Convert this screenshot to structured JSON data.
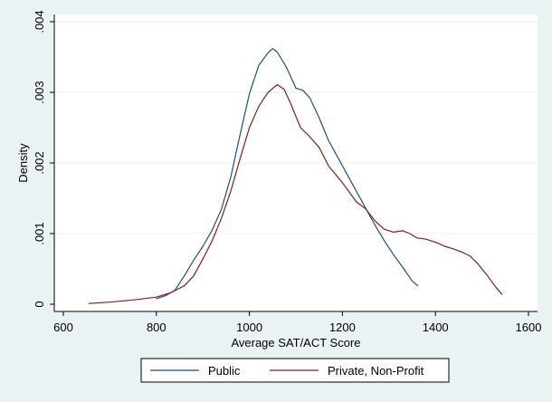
{
  "chart_data": {
    "type": "line",
    "title": "",
    "xlabel": "Average SAT/ACT Score",
    "ylabel": "Density",
    "xlim": [
      600,
      1600
    ],
    "ylim": [
      0,
      0.004
    ],
    "x_ticks": [
      600,
      800,
      1000,
      1200,
      1400,
      1600
    ],
    "y_ticks": [
      0,
      0.001,
      0.002,
      0.003,
      0.004
    ],
    "x_tick_labels": [
      "600",
      "800",
      "1000",
      "1200",
      "1400",
      "1600"
    ],
    "y_tick_labels": [
      "0",
      ".001",
      ".002",
      ".003",
      ".004"
    ],
    "grid": "horizontal",
    "legend_position": "bottom",
    "series": [
      {
        "name": "Public",
        "color": "#1a4f8b",
        "points": [
          [
            800,
            8e-05
          ],
          [
            820,
            0.00012
          ],
          [
            840,
            0.0002
          ],
          [
            860,
            0.0004
          ],
          [
            880,
            0.00062
          ],
          [
            900,
            0.00082
          ],
          [
            920,
            0.00105
          ],
          [
            940,
            0.00135
          ],
          [
            960,
            0.0018
          ],
          [
            980,
            0.0024
          ],
          [
            1000,
            0.00298
          ],
          [
            1020,
            0.00338
          ],
          [
            1040,
            0.00356
          ],
          [
            1050,
            0.00362
          ],
          [
            1060,
            0.00357
          ],
          [
            1080,
            0.00335
          ],
          [
            1100,
            0.00306
          ],
          [
            1115,
            0.00303
          ],
          [
            1130,
            0.00292
          ],
          [
            1150,
            0.00264
          ],
          [
            1170,
            0.00232
          ],
          [
            1200,
            0.00196
          ],
          [
            1230,
            0.0016
          ],
          [
            1250,
            0.00136
          ],
          [
            1270,
            0.00112
          ],
          [
            1290,
            0.0009
          ],
          [
            1310,
            0.0007
          ],
          [
            1330,
            0.00052
          ],
          [
            1350,
            0.00033
          ],
          [
            1362,
            0.00026
          ]
        ]
      },
      {
        "name": "Private, Non-Profit",
        "color": "#8b1a1a",
        "points": [
          [
            655,
            1e-05
          ],
          [
            700,
            3e-05
          ],
          [
            750,
            6e-05
          ],
          [
            800,
            0.0001
          ],
          [
            830,
            0.00016
          ],
          [
            860,
            0.00026
          ],
          [
            880,
            0.0004
          ],
          [
            900,
            0.00064
          ],
          [
            920,
            0.0009
          ],
          [
            940,
            0.00122
          ],
          [
            960,
            0.0016
          ],
          [
            980,
            0.00206
          ],
          [
            1000,
            0.0025
          ],
          [
            1020,
            0.0028
          ],
          [
            1040,
            0.003
          ],
          [
            1060,
            0.00311
          ],
          [
            1075,
            0.00304
          ],
          [
            1090,
            0.00282
          ],
          [
            1110,
            0.0025
          ],
          [
            1130,
            0.00237
          ],
          [
            1150,
            0.00222
          ],
          [
            1170,
            0.00196
          ],
          [
            1200,
            0.00172
          ],
          [
            1230,
            0.00145
          ],
          [
            1250,
            0.00135
          ],
          [
            1270,
            0.00118
          ],
          [
            1290,
            0.00106
          ],
          [
            1310,
            0.00102
          ],
          [
            1330,
            0.00104
          ],
          [
            1345,
            0.001
          ],
          [
            1360,
            0.00094
          ],
          [
            1380,
            0.00092
          ],
          [
            1400,
            0.00088
          ],
          [
            1420,
            0.00082
          ],
          [
            1440,
            0.00078
          ],
          [
            1460,
            0.00073
          ],
          [
            1475,
            0.00068
          ],
          [
            1490,
            0.00058
          ],
          [
            1510,
            0.00042
          ],
          [
            1530,
            0.00024
          ],
          [
            1543,
            0.00014
          ]
        ]
      }
    ]
  }
}
